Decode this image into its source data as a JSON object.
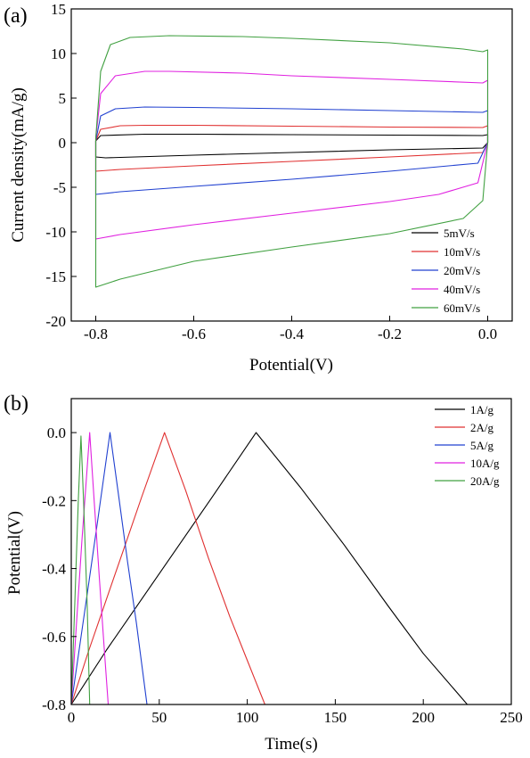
{
  "chart_data": [
    {
      "type": "line",
      "panel_label": "(a)",
      "xlabel": "Potential(V)",
      "ylabel": "Current density(mA/g)",
      "xlim": [
        -0.85,
        0.05
      ],
      "ylim": [
        -20,
        15
      ],
      "xticks": [
        -0.8,
        -0.6,
        -0.4,
        -0.2,
        0.0
      ],
      "xtick_labels": [
        "-0.8",
        "-0.6",
        "-0.4",
        "-0.2",
        "0.0"
      ],
      "yticks": [
        -20,
        -15,
        -10,
        -5,
        0,
        5,
        10,
        15
      ],
      "ytick_labels": [
        "-20",
        "-15",
        "-10",
        "-5",
        "0",
        "5",
        "10",
        "15"
      ],
      "legend_position": "bottom-right",
      "series": [
        {
          "name": "5mV/s",
          "color": "#000000",
          "x": [
            -0.8,
            -0.79,
            -0.7,
            -0.6,
            -0.4,
            -0.2,
            -0.01,
            0.0,
            0.0,
            -0.01,
            -0.2,
            -0.4,
            -0.6,
            -0.78,
            -0.8,
            -0.8
          ],
          "y": [
            0.2,
            0.8,
            0.95,
            0.95,
            0.9,
            0.85,
            0.8,
            0.9,
            0.0,
            -0.6,
            -0.8,
            -1.1,
            -1.4,
            -1.7,
            -1.6,
            0.2
          ]
        },
        {
          "name": "10mV/s",
          "color": "#e03030",
          "x": [
            -0.8,
            -0.79,
            -0.75,
            -0.7,
            -0.6,
            -0.4,
            -0.2,
            -0.01,
            0.0,
            0.0,
            -0.01,
            -0.2,
            -0.4,
            -0.6,
            -0.75,
            -0.8,
            -0.8
          ],
          "y": [
            0.2,
            1.5,
            1.9,
            1.95,
            1.95,
            1.85,
            1.75,
            1.7,
            1.9,
            0.0,
            -1.1,
            -1.6,
            -2.1,
            -2.6,
            -3.0,
            -3.2,
            0.2
          ]
        },
        {
          "name": "20mV/s",
          "color": "#2040d0",
          "x": [
            -0.8,
            -0.79,
            -0.76,
            -0.7,
            -0.6,
            -0.4,
            -0.2,
            -0.01,
            0.0,
            0.0,
            -0.02,
            -0.2,
            -0.4,
            -0.6,
            -0.75,
            -0.8,
            -0.8
          ],
          "y": [
            0.2,
            3.0,
            3.8,
            4.0,
            3.95,
            3.8,
            3.6,
            3.4,
            3.6,
            0.0,
            -2.3,
            -3.2,
            -4.1,
            -4.9,
            -5.5,
            -5.8,
            0.2
          ]
        },
        {
          "name": "40mV/s",
          "color": "#e020e0",
          "x": [
            -0.8,
            -0.79,
            -0.76,
            -0.7,
            -0.65,
            -0.5,
            -0.4,
            -0.2,
            -0.01,
            0.0,
            0.0,
            -0.02,
            -0.1,
            -0.2,
            -0.4,
            -0.6,
            -0.75,
            -0.8,
            -0.8
          ],
          "y": [
            0.5,
            5.5,
            7.5,
            8.0,
            8.0,
            7.8,
            7.5,
            7.1,
            6.7,
            7.0,
            0.0,
            -4.5,
            -5.8,
            -6.6,
            -7.9,
            -9.2,
            -10.3,
            -10.8,
            0.5
          ]
        },
        {
          "name": "60mV/s",
          "color": "#40a040",
          "x": [
            -0.8,
            -0.79,
            -0.77,
            -0.73,
            -0.65,
            -0.5,
            -0.4,
            -0.2,
            -0.05,
            -0.01,
            0.0,
            0.0,
            -0.01,
            -0.05,
            -0.2,
            -0.4,
            -0.6,
            -0.75,
            -0.8,
            -0.8
          ],
          "y": [
            0.5,
            8.0,
            11.0,
            11.8,
            12.0,
            11.9,
            11.7,
            11.2,
            10.5,
            10.2,
            10.4,
            0.0,
            -6.5,
            -8.5,
            -10.2,
            -11.7,
            -13.3,
            -15.3,
            -16.2,
            0.5
          ]
        }
      ]
    },
    {
      "type": "line",
      "panel_label": "(b)",
      "xlabel": "Time(s)",
      "ylabel": "Potential(V)",
      "xlim": [
        0,
        250
      ],
      "ylim": [
        -0.8,
        0.1
      ],
      "xticks": [
        0,
        50,
        100,
        150,
        200,
        250
      ],
      "xtick_labels": [
        "0",
        "50",
        "100",
        "150",
        "200",
        "250"
      ],
      "yticks": [
        -0.8,
        -0.6,
        -0.4,
        -0.2,
        0.0
      ],
      "ytick_labels": [
        "-0.8",
        "-0.6",
        "-0.4",
        "-0.2",
        "0.0"
      ],
      "legend_position": "top-right",
      "series": [
        {
          "name": "1A/g",
          "color": "#000000",
          "x": [
            0,
            20,
            40,
            60,
            80,
            105,
            130,
            155,
            180,
            200,
            225
          ],
          "y": [
            -0.8,
            -0.64,
            -0.49,
            -0.34,
            -0.19,
            0.0,
            -0.16,
            -0.33,
            -0.51,
            -0.65,
            -0.8
          ]
        },
        {
          "name": "2A/g",
          "color": "#e03030",
          "x": [
            0,
            10,
            20,
            30,
            40,
            53,
            65,
            78,
            90,
            100,
            110
          ],
          "y": [
            -0.8,
            -0.64,
            -0.49,
            -0.34,
            -0.19,
            0.0,
            -0.17,
            -0.37,
            -0.54,
            -0.67,
            -0.8
          ]
        },
        {
          "name": "5A/g",
          "color": "#2040d0",
          "x": [
            0,
            5,
            10,
            15,
            22,
            27,
            32,
            37,
            43
          ],
          "y": [
            -0.8,
            -0.62,
            -0.44,
            -0.26,
            0.0,
            -0.19,
            -0.38,
            -0.56,
            -0.8
          ]
        },
        {
          "name": "10A/g",
          "color": "#e020e0",
          "x": [
            0,
            3,
            6,
            10.5,
            13,
            16,
            18.5,
            21
          ],
          "y": [
            -0.8,
            -0.56,
            -0.32,
            0.0,
            -0.2,
            -0.43,
            -0.62,
            -0.8
          ]
        },
        {
          "name": "20A/g",
          "color": "#40a040",
          "x": [
            0,
            2,
            4,
            5.5,
            7,
            9,
            10.5
          ],
          "y": [
            -0.8,
            -0.5,
            -0.2,
            -0.01,
            -0.2,
            -0.5,
            -0.8
          ]
        }
      ]
    }
  ]
}
